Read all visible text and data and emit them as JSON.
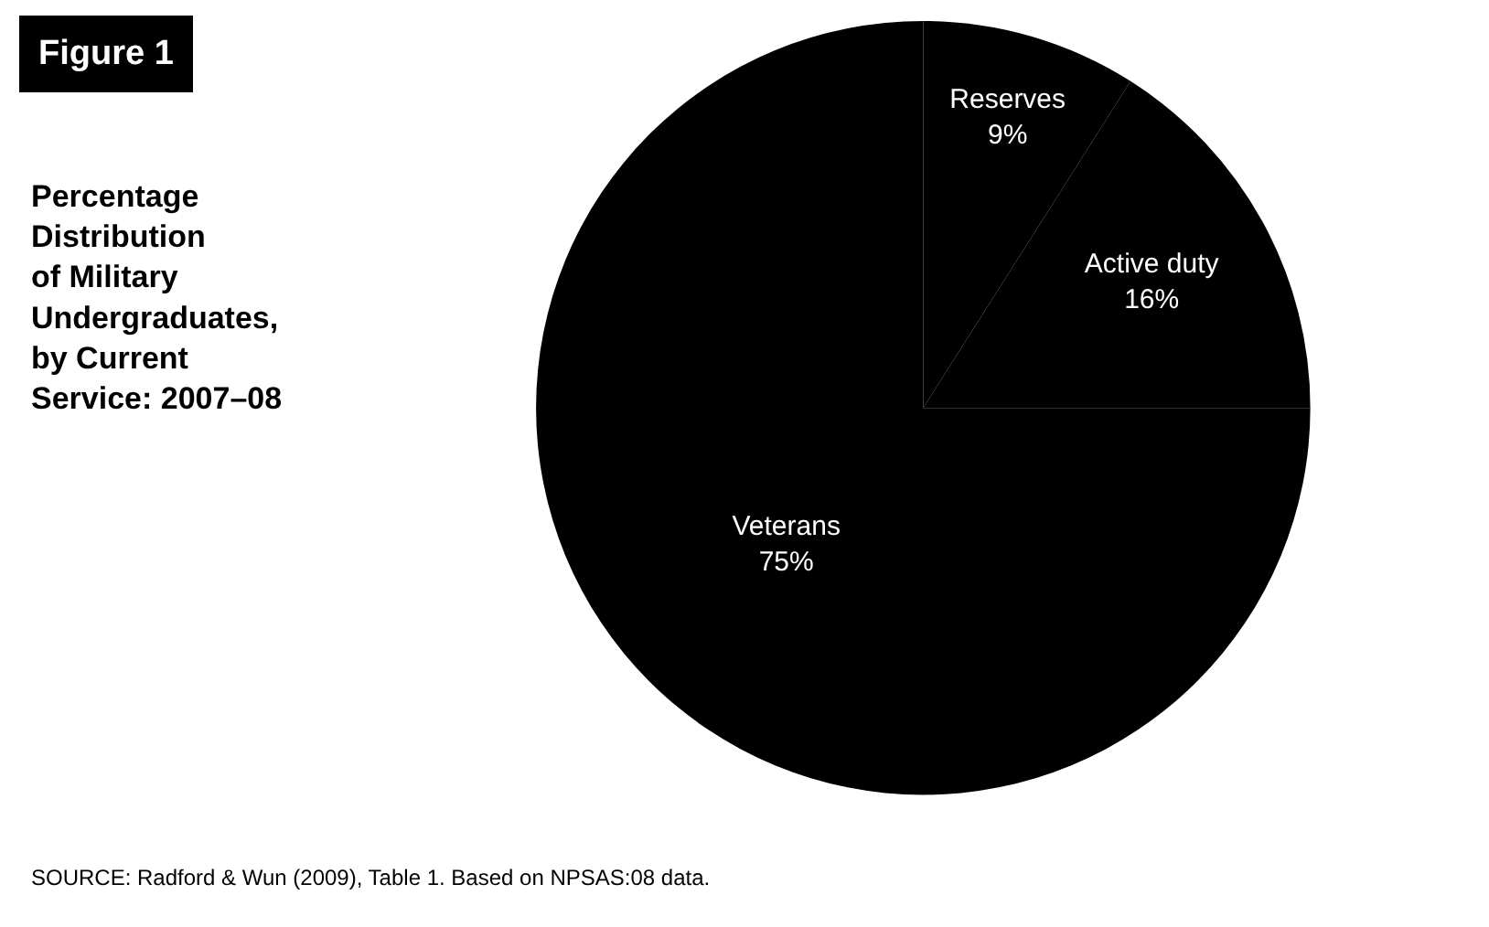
{
  "chart_data": {
    "type": "pie",
    "title": "Figure 1",
    "subtitle": "Percentage\nDistribution\nof Military\nUndergraduates,\nby Current\nService: 2007–08",
    "categories": [
      "Reserves",
      "Active duty",
      "Veterans"
    ],
    "values": [
      9,
      16,
      75
    ],
    "value_labels": [
      "9%",
      "16%",
      "75%"
    ],
    "colors": [
      "#000000",
      "#000000",
      "#000000"
    ],
    "legend": false,
    "annotations": [
      "SOURCE: Radford & Wun (2009), Table 1. Based on NPSAS:08 data."
    ]
  }
}
